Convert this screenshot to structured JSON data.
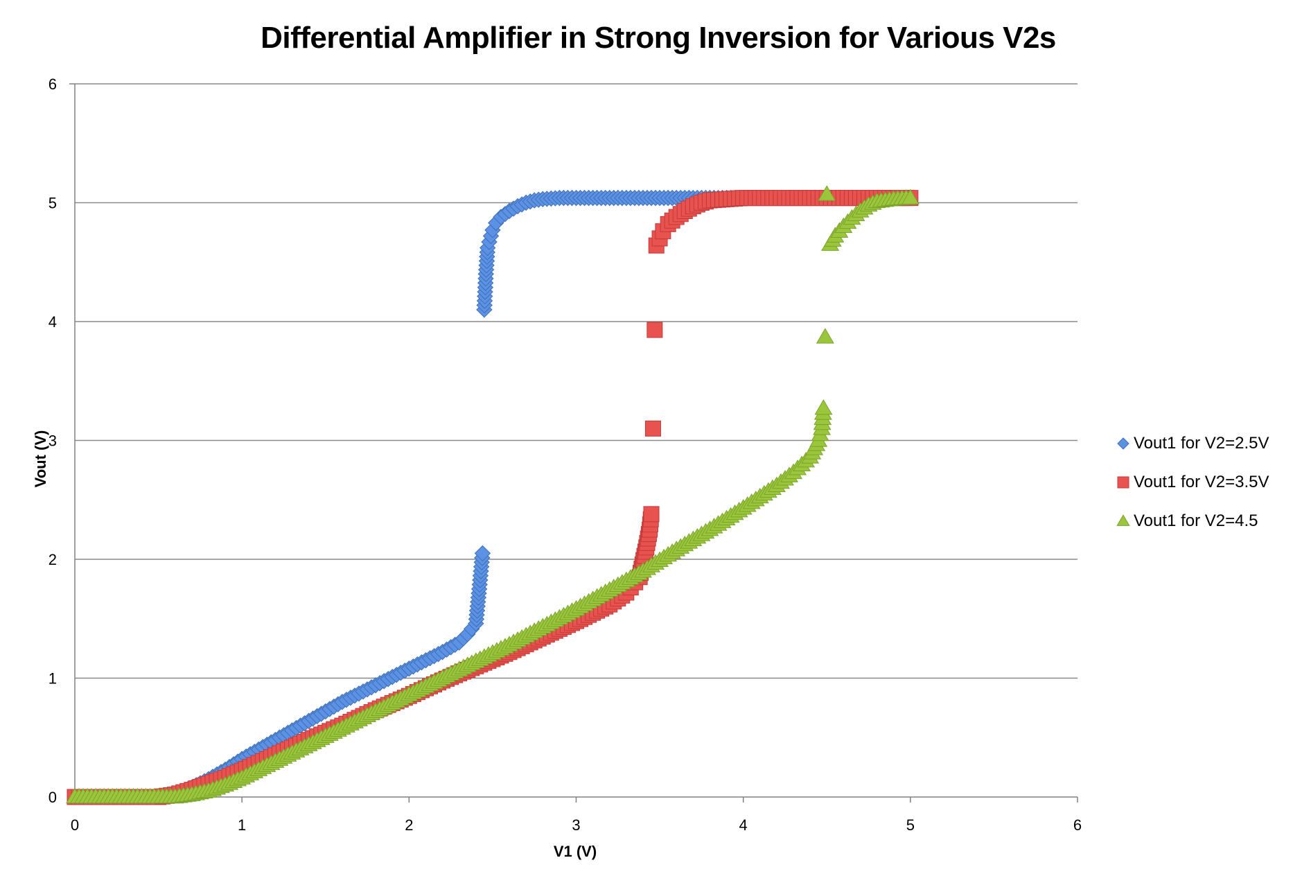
{
  "colors": {
    "series1": "#5b92e5",
    "series2": "#e8524f",
    "series3": "#9bc63c",
    "grid": "#888888",
    "axis": "#808080"
  },
  "chart_data": {
    "type": "scatter",
    "title": "Differential Amplifier in Strong Inversion for Various V2s",
    "xlabel": "V1 (V)",
    "ylabel": "Vout (V)",
    "xlim": [
      0,
      6
    ],
    "ylim": [
      0,
      6
    ],
    "xticks": [
      "0",
      "1",
      "2",
      "3",
      "4",
      "5",
      "6"
    ],
    "yticks": [
      "0",
      "1",
      "2",
      "3",
      "4",
      "5",
      "6"
    ],
    "grid": "horizontal",
    "legend_position": "right",
    "series": [
      {
        "name": "Vout1 for V2=2.5V",
        "marker": "diamond",
        "x": [
          0,
          0.1,
          0.2,
          0.3,
          0.4,
          0.5,
          0.6,
          0.7,
          0.8,
          0.9,
          1.0,
          1.1,
          1.2,
          1.3,
          1.4,
          1.5,
          1.6,
          1.7,
          1.8,
          1.9,
          2.0,
          2.1,
          2.2,
          2.3,
          2.35,
          2.4,
          2.42,
          2.44,
          2.45,
          2.46,
          2.47,
          2.48,
          2.49,
          2.5,
          2.52,
          2.55,
          2.6,
          2.65,
          2.7,
          2.75,
          2.8,
          2.9,
          3.0,
          3.2,
          3.4,
          3.6,
          3.8,
          4.0,
          4.2,
          4.4,
          4.6,
          4.8,
          5.0
        ],
        "y": [
          0,
          0,
          0,
          0,
          0,
          0,
          0.02,
          0.08,
          0.15,
          0.23,
          0.32,
          0.4,
          0.48,
          0.56,
          0.64,
          0.72,
          0.8,
          0.87,
          0.94,
          1.01,
          1.08,
          1.15,
          1.22,
          1.3,
          1.37,
          1.46,
          1.75,
          2.05,
          4.1,
          4.4,
          4.62,
          4.67,
          4.72,
          4.77,
          4.83,
          4.88,
          4.93,
          4.97,
          5.0,
          5.02,
          5.03,
          5.04,
          5.04,
          5.04,
          5.04,
          5.04,
          5.04,
          5.04,
          5.04,
          5.04,
          5.04,
          5.04,
          5.04
        ]
      },
      {
        "name": "Vout1 for V2=3.5V",
        "marker": "square",
        "x": [
          0,
          0.1,
          0.2,
          0.3,
          0.4,
          0.5,
          0.6,
          0.7,
          0.8,
          0.9,
          1.0,
          1.2,
          1.4,
          1.6,
          1.8,
          2.0,
          2.2,
          2.4,
          2.6,
          2.8,
          3.0,
          3.1,
          3.2,
          3.3,
          3.38,
          3.42,
          3.44,
          3.45,
          3.46,
          3.47,
          3.48,
          3.5,
          3.52,
          3.55,
          3.6,
          3.65,
          3.7,
          3.75,
          3.8,
          3.9,
          4.0,
          4.2,
          4.4,
          4.6,
          4.8,
          5.0
        ],
        "y": [
          0,
          0,
          0,
          0,
          0,
          0,
          0.02,
          0.06,
          0.11,
          0.16,
          0.22,
          0.35,
          0.48,
          0.6,
          0.73,
          0.85,
          0.98,
          1.1,
          1.22,
          1.35,
          1.48,
          1.55,
          1.62,
          1.72,
          1.85,
          2.1,
          2.25,
          2.38,
          3.1,
          3.93,
          4.64,
          4.7,
          4.76,
          4.82,
          4.88,
          4.93,
          4.97,
          5.0,
          5.02,
          5.03,
          5.04,
          5.04,
          5.04,
          5.04,
          5.04,
          5.04
        ]
      },
      {
        "name": "Vout1 for V2=4.5",
        "marker": "triangle",
        "x": [
          0,
          0.1,
          0.2,
          0.3,
          0.4,
          0.5,
          0.6,
          0.7,
          0.8,
          0.9,
          1.0,
          1.2,
          1.4,
          1.6,
          1.8,
          2.0,
          2.2,
          2.4,
          2.6,
          2.8,
          3.0,
          3.2,
          3.4,
          3.6,
          3.8,
          4.0,
          4.2,
          4.3,
          4.4,
          4.45,
          4.47,
          4.48,
          4.49,
          4.5,
          4.52,
          4.55,
          4.6,
          4.65,
          4.7,
          4.75,
          4.8,
          4.9,
          5.0
        ],
        "y": [
          0,
          0,
          0,
          0,
          0,
          0,
          0,
          0.02,
          0.05,
          0.1,
          0.16,
          0.3,
          0.44,
          0.58,
          0.72,
          0.86,
          1.0,
          1.14,
          1.28,
          1.43,
          1.58,
          1.74,
          1.9,
          2.08,
          2.25,
          2.43,
          2.62,
          2.73,
          2.86,
          3.0,
          3.1,
          3.27,
          3.87,
          5.07,
          4.65,
          4.72,
          4.8,
          4.87,
          4.93,
          4.98,
          5.01,
          5.03,
          5.04
        ]
      }
    ]
  }
}
